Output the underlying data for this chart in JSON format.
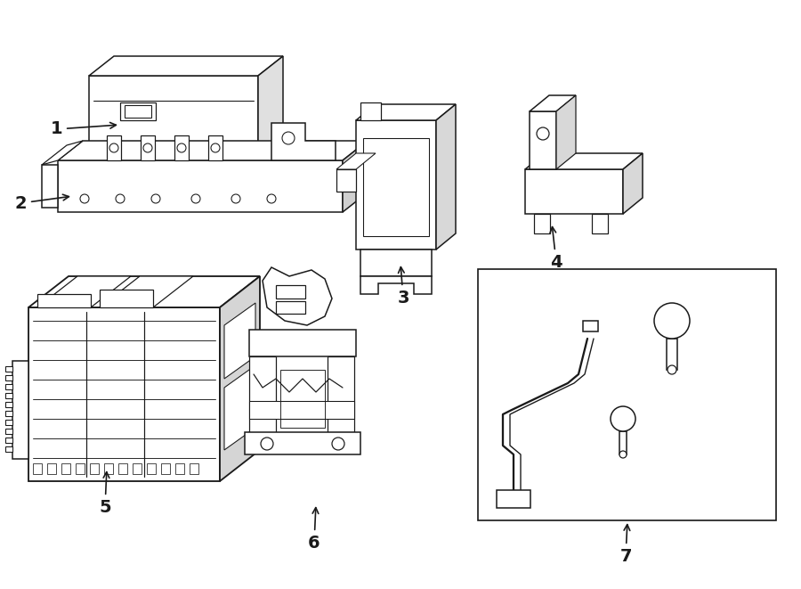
{
  "background_color": "#ffffff",
  "line_color": "#1a1a1a",
  "line_width": 1.1,
  "fig_width": 9.0,
  "fig_height": 6.61
}
